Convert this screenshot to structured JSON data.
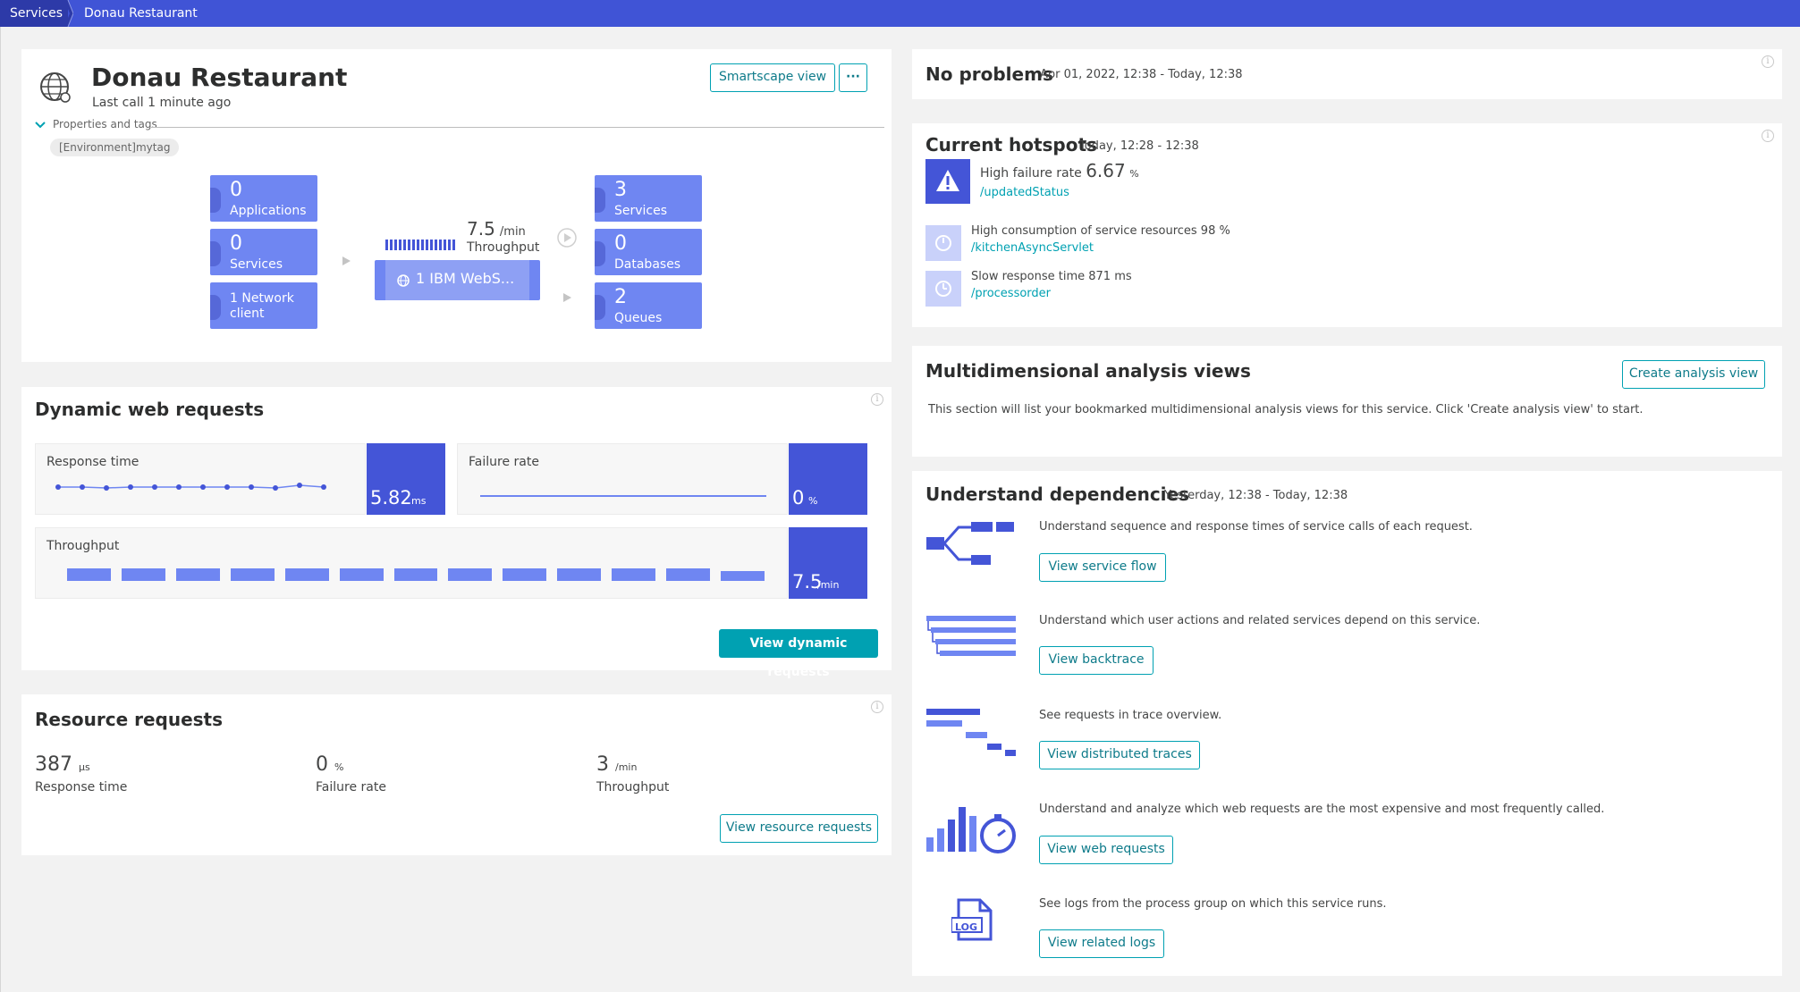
{
  "breadcrumb": {
    "first": "Services",
    "second": "Donau Restaurant"
  },
  "service": {
    "title": "Donau Restaurant",
    "subtitle": "Last call 1 minute ago",
    "properties_label": "Properties and tags",
    "tag": "[Environment]mytag",
    "smartscape_button": "Smartscape view",
    "more_button": "···"
  },
  "topology": {
    "left": [
      {
        "num": "0",
        "label": "Applications"
      },
      {
        "num": "0",
        "label": "Services"
      },
      {
        "num": "",
        "label": "1 Network client"
      }
    ],
    "throughput_value": "7.5",
    "throughput_unit": "/min",
    "throughput_label": "Throughput",
    "process": "1 IBM WebS...",
    "right": [
      {
        "num": "3",
        "label": "Services"
      },
      {
        "num": "0",
        "label": "Databases"
      },
      {
        "num": "2",
        "label": "Queues"
      }
    ]
  },
  "dynamic": {
    "title": "Dynamic web requests",
    "response_time_label": "Response time",
    "response_time_value": "5.82",
    "response_time_unit": "ms",
    "failure_rate_label": "Failure rate",
    "failure_rate_value": "0",
    "failure_rate_unit": "%",
    "throughput_label": "Throughput",
    "throughput_value": "7.5",
    "throughput_unit": "/min",
    "button": "View dynamic requests"
  },
  "resource": {
    "title": "Resource requests",
    "items": [
      {
        "value": "387",
        "unit": "µs",
        "label": "Response time"
      },
      {
        "value": "0",
        "unit": "%",
        "label": "Failure rate"
      },
      {
        "value": "3",
        "unit": "/min",
        "label": "Throughput"
      }
    ],
    "button": "View resource requests"
  },
  "problems": {
    "title": "No problems",
    "range": "Apr 01, 2022, 12:38 - Today, 12:38"
  },
  "hotspots": {
    "title": "Current hotspots",
    "range": "Today, 12:28 - 12:38",
    "items": [
      {
        "text": "High failure rate",
        "value": "6.67",
        "unit": "%",
        "link": "/updatedStatus"
      },
      {
        "text": "High consumption of service resources 98 %",
        "link": "/kitchenAsyncServlet"
      },
      {
        "text": "Slow response time 871 ms",
        "link": "/processorder"
      }
    ]
  },
  "analysis": {
    "title": "Multidimensional analysis views",
    "button": "Create analysis view",
    "text": "This section will list your bookmarked multidimensional analysis views for this service. Click 'Create analysis view' to start."
  },
  "dependencies": {
    "title": "Understand dependencies",
    "range": "Yesterday, 12:38 - Today, 12:38",
    "items": [
      {
        "text": "Understand sequence and response times of service calls of each request.",
        "button": "View service flow",
        "icon": "service-flow-icon"
      },
      {
        "text": "Understand which user actions and related services depend on this service.",
        "button": "View backtrace",
        "icon": "backtrace-icon"
      },
      {
        "text": "See requests in trace overview.",
        "button": "View distributed traces",
        "icon": "distributed-traces-icon"
      },
      {
        "text": "Understand and analyze which web requests are the most expensive and most frequently called.",
        "button": "View web requests",
        "icon": "web-requests-icon"
      },
      {
        "text": "See logs from the process group on which this service runs.",
        "button": "View related logs",
        "icon": "log-icon"
      }
    ]
  },
  "colors": {
    "topbar": "#4054d6",
    "accent": "#00a1b2",
    "tile": "#6f86f2",
    "metric": "#4455d7"
  }
}
